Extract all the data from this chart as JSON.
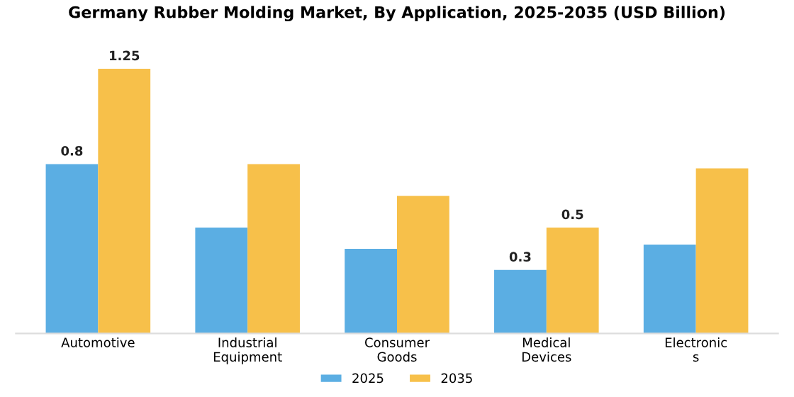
{
  "chart_data": {
    "type": "bar",
    "title": "Germany Rubber Molding Market, By Application, 2025-2035 (USD Billion)",
    "categories": [
      "Automotive",
      "Industrial\nEquipment",
      "Consumer\nGoods",
      "Medical\nDevices",
      "Electronic\ns"
    ],
    "series": [
      {
        "name": "2025",
        "color": "#5baee3",
        "values": [
          0.8,
          0.5,
          0.4,
          0.3,
          0.42
        ],
        "value_labels": [
          "0.8",
          null,
          null,
          "0.3",
          null
        ]
      },
      {
        "name": "2035",
        "color": "#f7c04a",
        "values": [
          1.25,
          0.8,
          0.65,
          0.5,
          0.78
        ],
        "value_labels": [
          "1.25",
          null,
          null,
          "0.5",
          null
        ]
      }
    ],
    "legend": "bottom",
    "grid": false
  }
}
